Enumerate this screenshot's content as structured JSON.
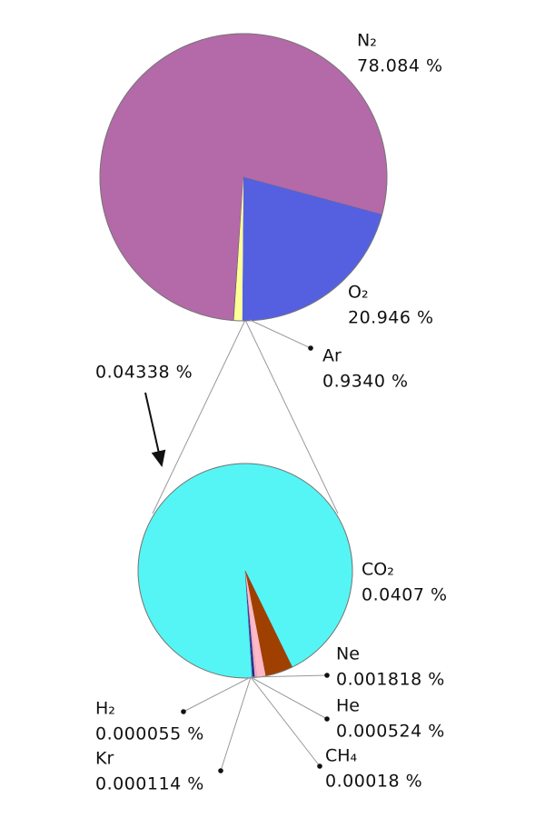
{
  "chart_data": [
    {
      "type": "pie",
      "categories": [
        "N₂",
        "O₂",
        "Ar",
        null
      ],
      "values": [
        78.084,
        20.946,
        0.934,
        0.04338
      ],
      "value_labels": [
        "78.084 %",
        "20.946 %",
        "0.9340 %",
        "0.04338 %"
      ],
      "colors": [
        "#b469a8",
        "#5560e0",
        "#ffff99",
        "#444444"
      ]
    },
    {
      "type": "pie",
      "categories": [
        "CO₂",
        "Ne",
        "He",
        "CH₄",
        "Kr",
        "H₂"
      ],
      "values": [
        0.0407,
        0.001818,
        0.000524,
        0.00018,
        0.000114,
        5.5e-05
      ],
      "value_labels": [
        "0.0407 %",
        "0.001818 %",
        "0.000524 %",
        "0.00018 %",
        "0.000114 %",
        "0.000055 %"
      ],
      "colors": [
        "#55f5f5",
        "#a04000",
        "#ffb8c8",
        "#e8a8b8",
        "#1a1a80",
        "#3050c0"
      ]
    }
  ]
}
